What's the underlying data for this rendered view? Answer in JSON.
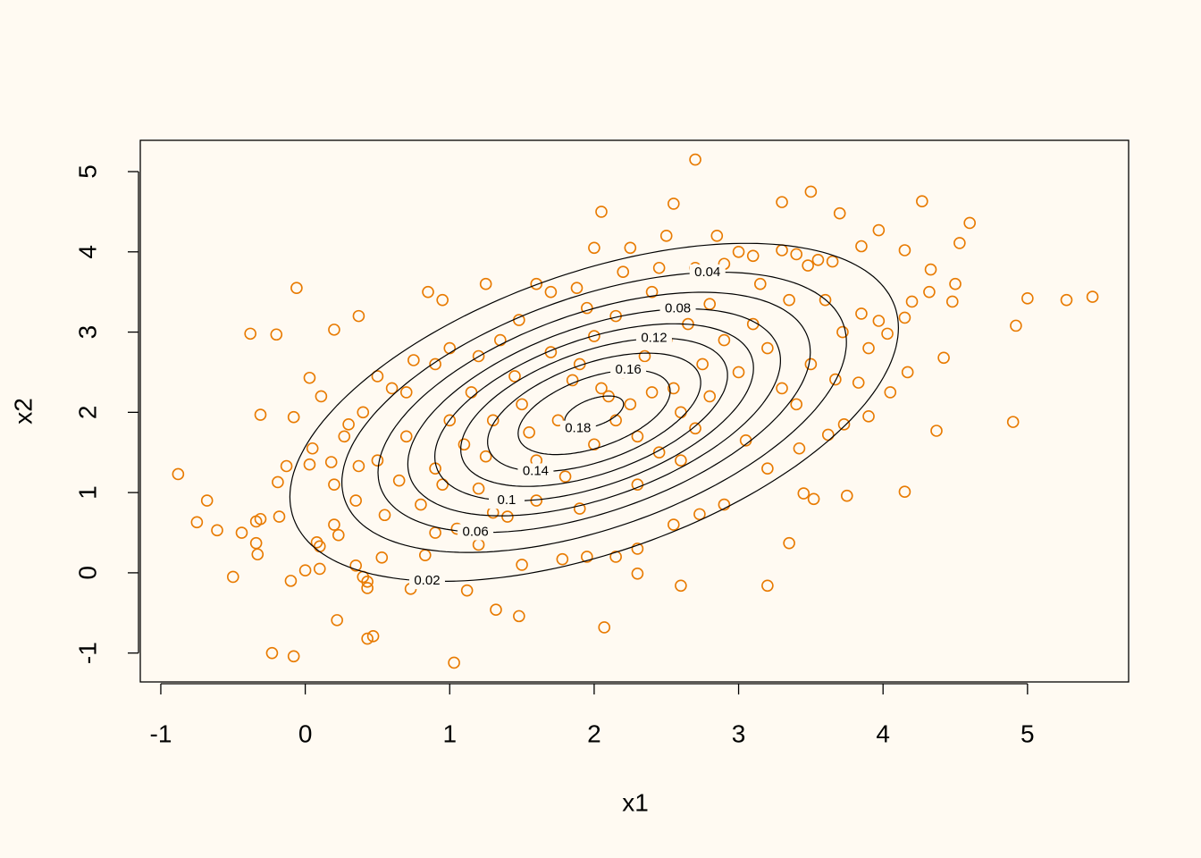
{
  "chart_data": {
    "type": "scatter",
    "xlabel": "x1",
    "ylabel": "x2",
    "x": [
      2.7,
      2.05,
      2.55,
      3.5,
      3.3,
      3.7,
      4.27,
      4.6,
      4.53,
      3.97,
      3.85,
      4.15,
      2.85,
      2.5,
      2.0,
      2.25,
      1.25,
      0.85,
      0.95,
      -0.06,
      0.37,
      -0.38,
      -0.2,
      0.2,
      4.33,
      4.5,
      4.32,
      4.48,
      5.0,
      5.27,
      5.45,
      4.92,
      4.2,
      4.03,
      4.15,
      3.97,
      4.42,
      4.17,
      4.05,
      4.9,
      4.37,
      4.15,
      3.75,
      3.52,
      3.45,
      3.35,
      3.2,
      2.6,
      2.3,
      2.07,
      1.48,
      1.32,
      1.03,
      1.12,
      0.73,
      0.43,
      0.47,
      0.22,
      -0.08,
      -0.23,
      -0.1,
      0.43,
      0.43,
      0.4,
      -0.5,
      0.0,
      0.1,
      -0.33,
      -0.34,
      -0.44,
      -0.61,
      -0.75,
      -0.68,
      -0.88,
      -0.34,
      -0.31,
      -0.18,
      -0.19,
      -0.13,
      -0.31,
      0.03,
      0.11,
      -0.08,
      0.05,
      0.03,
      0.37,
      0.08,
      0.1,
      0.23,
      0.35,
      0.53,
      0.83,
      1.2,
      1.5,
      1.78,
      1.95,
      2.15,
      2.3,
      2.55,
      2.73,
      2.9,
      3.2,
      3.42,
      3.62,
      3.73,
      3.9,
      3.83,
      3.67,
      3.9,
      3.72,
      3.85,
      3.6,
      3.65,
      3.48,
      3.55,
      3.4,
      3.3,
      3.0,
      3.1,
      2.9,
      2.7,
      2.45,
      2.2,
      1.88,
      1.7,
      1.6,
      1.48,
      1.35,
      1.2,
      1.0,
      0.9,
      0.75,
      0.7,
      0.5,
      0.6,
      0.4,
      0.3,
      0.27,
      0.18,
      0.2,
      0.2,
      0.35,
      0.55,
      0.8,
      0.9,
      1.1,
      1.3,
      1.5,
      1.6,
      1.75,
      1.85,
      1.9,
      2.0,
      2.05,
      2.1,
      2.15,
      2.2,
      2.25,
      2.3,
      2.35,
      2.4,
      2.45,
      2.5,
      2.55,
      2.6,
      2.7,
      2.75,
      2.8,
      2.9,
      3.0,
      3.05,
      3.1,
      3.2,
      3.3,
      3.35,
      3.4,
      3.5,
      1.2,
      1.4,
      1.6,
      1.8,
      1.9,
      2.3,
      2.6,
      2.0,
      1.7,
      1.45,
      1.55,
      1.25,
      1.0,
      0.95,
      0.65,
      0.5,
      0.7,
      1.15,
      2.8,
      2.4,
      2.15,
      1.95,
      2.65,
      3.15,
      1.05,
      0.9,
      1.3
    ],
    "y": [
      5.15,
      4.5,
      4.6,
      4.75,
      4.62,
      4.48,
      4.63,
      4.36,
      4.11,
      4.27,
      4.07,
      4.02,
      4.2,
      4.2,
      4.05,
      4.05,
      3.6,
      3.5,
      3.4,
      3.55,
      3.2,
      2.98,
      2.97,
      3.03,
      3.78,
      3.6,
      3.5,
      3.38,
      3.42,
      3.4,
      3.44,
      3.08,
      3.38,
      2.98,
      3.18,
      3.14,
      2.68,
      2.5,
      2.25,
      1.88,
      1.77,
      1.01,
      0.96,
      0.92,
      0.99,
      0.37,
      -0.16,
      -0.16,
      -0.01,
      -0.68,
      -0.54,
      -0.46,
      -1.12,
      -0.22,
      -0.2,
      -0.82,
      -0.79,
      -0.59,
      -1.04,
      -1.0,
      -0.1,
      -0.19,
      -0.11,
      -0.05,
      -0.05,
      0.03,
      0.05,
      0.23,
      0.37,
      0.5,
      0.53,
      0.63,
      0.9,
      1.23,
      0.64,
      0.67,
      0.7,
      1.13,
      1.33,
      1.97,
      2.43,
      2.2,
      1.94,
      1.55,
      1.35,
      1.33,
      0.38,
      0.33,
      0.47,
      0.09,
      0.19,
      0.22,
      0.35,
      0.1,
      0.17,
      0.2,
      0.2,
      0.3,
      0.6,
      0.73,
      0.85,
      1.3,
      1.55,
      1.72,
      1.85,
      1.95,
      2.37,
      2.41,
      2.8,
      3.0,
      3.23,
      3.4,
      3.88,
      3.83,
      3.9,
      3.97,
      4.02,
      4.0,
      3.95,
      3.85,
      3.8,
      3.8,
      3.75,
      3.55,
      3.5,
      3.6,
      3.15,
      2.9,
      2.7,
      2.8,
      2.6,
      2.65,
      2.25,
      2.45,
      2.3,
      2.0,
      1.85,
      1.7,
      1.38,
      1.1,
      0.6,
      0.9,
      0.72,
      0.85,
      1.3,
      1.6,
      1.9,
      2.1,
      1.4,
      1.9,
      2.4,
      2.6,
      1.6,
      2.3,
      2.2,
      1.9,
      2.5,
      2.1,
      1.7,
      2.7,
      2.25,
      1.5,
      2.9,
      2.3,
      2.0,
      1.8,
      2.6,
      2.2,
      2.9,
      2.5,
      1.65,
      3.1,
      2.8,
      2.3,
      3.4,
      2.1,
      2.6,
      1.05,
      0.7,
      0.9,
      1.2,
      0.8,
      1.1,
      1.4,
      2.95,
      2.75,
      2.45,
      1.75,
      1.45,
      1.9,
      1.1,
      1.15,
      1.4,
      1.7,
      2.25,
      3.35,
      3.5,
      3.2,
      3.3,
      3.1,
      3.6,
      0.55,
      0.5,
      0.75
    ],
    "color": "#e87a00",
    "contour_levels": [
      0.02,
      0.04,
      0.06,
      0.08,
      0.1,
      0.12,
      0.14,
      0.16,
      0.18
    ],
    "contour_color": "#000000",
    "xlim": [
      -1.142,
      5.7
    ],
    "xticks": [
      -1,
      0,
      1,
      2,
      3,
      4,
      5
    ],
    "ylim": [
      -1.36,
      5.39
    ],
    "yticks": [
      -1,
      0,
      1,
      2,
      3,
      4,
      5
    ]
  }
}
